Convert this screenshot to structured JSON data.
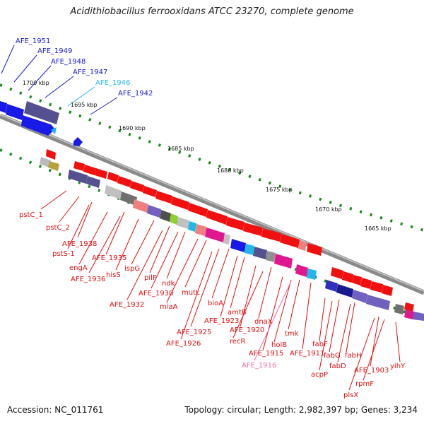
{
  "title": "Acidithiobacillus ferrooxidans ATCC 23270, complete genome",
  "footer": {
    "accession": "Accession: NC_011761",
    "stats": "Topology: circular; Length: 2,982,397 bp; Genes: 3,234"
  },
  "scale_labels": [
    "1700 kbp",
    "1695 kbp",
    "1690 kbp",
    "1685 kbp",
    "1680 kbp",
    "1675 kbp",
    "1670 kbp",
    "1665 kbp"
  ],
  "colors": {
    "forward_strand_gene": "#0a1ef0",
    "reverse_strand_gene": "#f01010",
    "label_blue": "#1a1acc",
    "label_red": "#e01010",
    "label_cyan": "#20b8e8",
    "label_pink": "#f06aa8",
    "backbone": "#808080",
    "scale_ticks": "#1a8a1a"
  },
  "upper_labels": [
    {
      "text": "AFE_1951",
      "color": "blue"
    },
    {
      "text": "AFE_1949",
      "color": "blue"
    },
    {
      "text": "AFE_1948",
      "color": "blue"
    },
    {
      "text": "AFE_1947",
      "color": "blue"
    },
    {
      "text": "AFE_1946",
      "color": "cyan"
    },
    {
      "text": "AFE_1942",
      "color": "blue"
    }
  ],
  "lower_labels": [
    {
      "text": "pstC_1",
      "color": "red"
    },
    {
      "text": "pstC_2",
      "color": "red"
    },
    {
      "text": "AFE_1938",
      "color": "red"
    },
    {
      "text": "pstS-1",
      "color": "red"
    },
    {
      "text": "AFE_1935",
      "color": "red"
    },
    {
      "text": "engA",
      "color": "red"
    },
    {
      "text": "hisS",
      "color": "red"
    },
    {
      "text": "AFE_1936",
      "color": "red"
    },
    {
      "text": "ispG",
      "color": "red"
    },
    {
      "text": "pilF",
      "color": "red"
    },
    {
      "text": "ndk",
      "color": "red"
    },
    {
      "text": "AFE_1930",
      "color": "red"
    },
    {
      "text": "mutL",
      "color": "red"
    },
    {
      "text": "AFE_1932",
      "color": "red"
    },
    {
      "text": "miaA",
      "color": "red"
    },
    {
      "text": "bioA",
      "color": "red"
    },
    {
      "text": "amtB",
      "color": "red"
    },
    {
      "text": "AFE_1923",
      "color": "red"
    },
    {
      "text": "dnaX",
      "color": "red"
    },
    {
      "text": "AFE_1925",
      "color": "red"
    },
    {
      "text": "AFE_1920",
      "color": "red"
    },
    {
      "text": "recR",
      "color": "red"
    },
    {
      "text": "AFE_1926",
      "color": "red"
    },
    {
      "text": "tmk",
      "color": "red"
    },
    {
      "text": "holB",
      "color": "red"
    },
    {
      "text": "AFE_1915",
      "color": "red"
    },
    {
      "text": "AFE_1911",
      "color": "red"
    },
    {
      "text": "AFE_1916",
      "color": "pink"
    },
    {
      "text": "fabF",
      "color": "red"
    },
    {
      "text": "fabG",
      "color": "red"
    },
    {
      "text": "fabH",
      "color": "red"
    },
    {
      "text": "fabD",
      "color": "red"
    },
    {
      "text": "acpP",
      "color": "red"
    },
    {
      "text": "yihY",
      "color": "red"
    },
    {
      "text": "AFE_1903",
      "color": "red"
    },
    {
      "text": "rpmF",
      "color": "red"
    },
    {
      "text": "plsX",
      "color": "red"
    }
  ]
}
